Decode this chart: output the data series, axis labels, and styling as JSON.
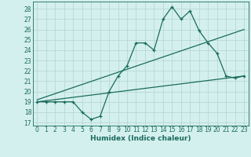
{
  "xlabel": "Humidex (Indice chaleur)",
  "bg_color": "#d4f0ee",
  "grid_color": "#b8d8d4",
  "line_color": "#1a6b5e",
  "x_ticks": [
    0,
    1,
    2,
    3,
    4,
    5,
    6,
    7,
    8,
    9,
    10,
    11,
    12,
    13,
    14,
    15,
    16,
    17,
    18,
    19,
    20,
    21,
    22,
    23
  ],
  "y_ticks": [
    17,
    18,
    19,
    20,
    21,
    22,
    23,
    24,
    25,
    26,
    27,
    28
  ],
  "xlim": [
    -0.5,
    23.5
  ],
  "ylim": [
    16.7,
    28.7
  ],
  "main_x": [
    0,
    1,
    2,
    3,
    4,
    5,
    6,
    7,
    8,
    9,
    10,
    11,
    12,
    13,
    14,
    15,
    16,
    17,
    18,
    19,
    20,
    21,
    22,
    23
  ],
  "main_y": [
    19,
    19,
    19,
    19,
    19,
    18,
    17.3,
    17.6,
    20,
    21.5,
    22.5,
    24.7,
    24.7,
    24,
    27,
    28.2,
    27,
    27.8,
    25.9,
    24.7,
    23.7,
    21.5,
    21.3,
    21.5
  ],
  "trend1_x": [
    0,
    23
  ],
  "trend1_y": [
    19.0,
    21.5
  ],
  "trend2_x": [
    0,
    23
  ],
  "trend2_y": [
    19.2,
    26.0
  ],
  "tick_fontsize": 5.5,
  "label_fontsize": 6.5,
  "marker_style": "+"
}
